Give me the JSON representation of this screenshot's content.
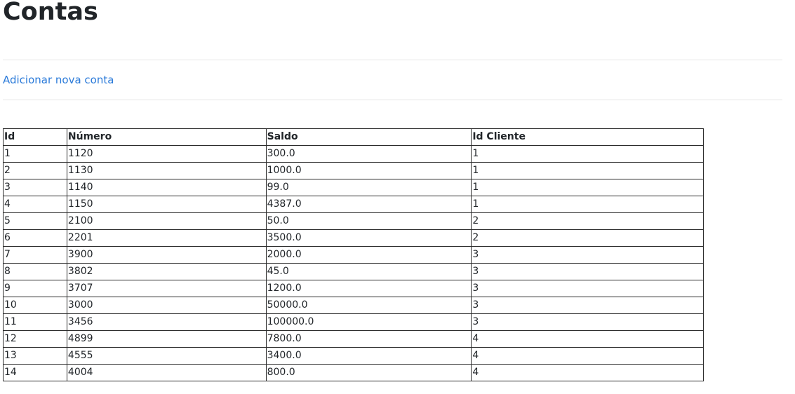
{
  "page": {
    "title": "Contas",
    "add_link": "Adicionar nova conta"
  },
  "table": {
    "headers": [
      "Id",
      "Número",
      "Saldo",
      "Id Cliente"
    ],
    "rows": [
      [
        "1",
        "1120",
        "300.0",
        "1"
      ],
      [
        "2",
        "1130",
        "1000.0",
        "1"
      ],
      [
        "3",
        "1140",
        "99.0",
        "1"
      ],
      [
        "4",
        "1150",
        "4387.0",
        "1"
      ],
      [
        "5",
        "2100",
        "50.0",
        "2"
      ],
      [
        "6",
        "2201",
        "3500.0",
        "2"
      ],
      [
        "7",
        "3900",
        "2000.0",
        "3"
      ],
      [
        "8",
        "3802",
        "45.0",
        "3"
      ],
      [
        "9",
        "3707",
        "1200.0",
        "3"
      ],
      [
        "10",
        "3000",
        "50000.0",
        "3"
      ],
      [
        "11",
        "3456",
        "100000.0",
        "3"
      ],
      [
        "12",
        "4899",
        "7800.0",
        "4"
      ],
      [
        "13",
        "4555",
        "3400.0",
        "4"
      ],
      [
        "14",
        "4004",
        "800.0",
        "4"
      ]
    ]
  },
  "colors": {
    "link": "#2a7ad9",
    "text": "#212529",
    "border": "#2b2b2b",
    "divider": "#e5e5e5"
  }
}
